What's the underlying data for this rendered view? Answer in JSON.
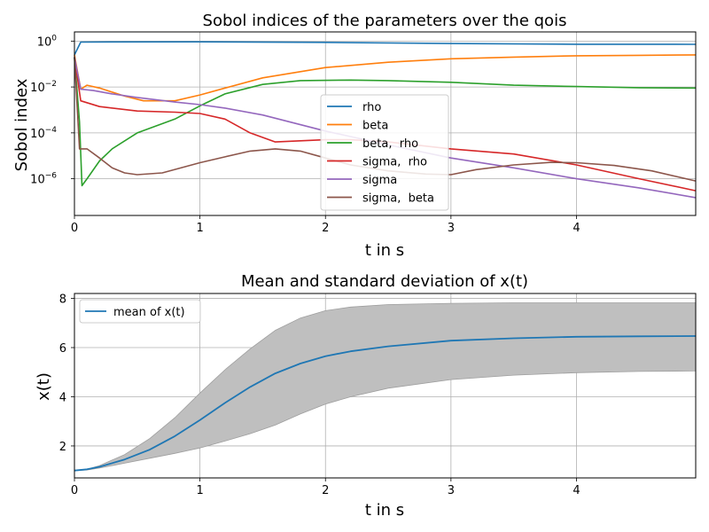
{
  "chart_data": [
    {
      "type": "line",
      "title": "Sobol indices of the parameters over the qois",
      "xlabel": "t in s",
      "ylabel": "Sobol index",
      "xlim": [
        0,
        4.95
      ],
      "ylim_log10": [
        -7.6,
        0.4
      ],
      "yscale": "log",
      "grid": true,
      "legend_position": "center-right",
      "xticks": [
        {
          "value": 0,
          "label": "0"
        },
        {
          "value": 1,
          "label": "1"
        },
        {
          "value": 2,
          "label": "2"
        },
        {
          "value": 3,
          "label": "3"
        },
        {
          "value": 4,
          "label": "4"
        }
      ],
      "yticks": [
        {
          "exp": 0,
          "base": "10",
          "sup": "0"
        },
        {
          "exp": -2,
          "base": "10",
          "sup": "−2"
        },
        {
          "exp": -4,
          "base": "10",
          "sup": "−4"
        },
        {
          "exp": -6,
          "base": "10",
          "sup": "−6"
        }
      ],
      "series": [
        {
          "name": "rho",
          "color": "#1f77b4",
          "points": [
            [
              0,
              0.25
            ],
            [
              0.05,
              0.9
            ],
            [
              0.3,
              0.92
            ],
            [
              1,
              0.93
            ],
            [
              2,
              0.88
            ],
            [
              3,
              0.78
            ],
            [
              4,
              0.73
            ],
            [
              4.95,
              0.72
            ]
          ]
        },
        {
          "name": "beta",
          "color": "#ff7f0e",
          "points": [
            [
              0,
              0.25
            ],
            [
              0.05,
              0.008
            ],
            [
              0.1,
              0.012
            ],
            [
              0.2,
              0.009
            ],
            [
              0.4,
              0.004
            ],
            [
              0.55,
              0.0025
            ],
            [
              0.8,
              0.0025
            ],
            [
              1,
              0.0045
            ],
            [
              1.2,
              0.009
            ],
            [
              1.5,
              0.025
            ],
            [
              2,
              0.07
            ],
            [
              2.5,
              0.12
            ],
            [
              3,
              0.17
            ],
            [
              3.5,
              0.2
            ],
            [
              4,
              0.23
            ],
            [
              4.5,
              0.24
            ],
            [
              4.95,
              0.25
            ]
          ]
        },
        {
          "name": "beta,  rho",
          "color": "#2ca02c",
          "points": [
            [
              0,
              0.2
            ],
            [
              0.04,
              0.0003
            ],
            [
              0.06,
              5e-07
            ],
            [
              0.1,
              1e-06
            ],
            [
              0.2,
              6e-06
            ],
            [
              0.3,
              2e-05
            ],
            [
              0.5,
              0.0001
            ],
            [
              0.8,
              0.0004
            ],
            [
              1,
              0.0015
            ],
            [
              1.2,
              0.005
            ],
            [
              1.5,
              0.013
            ],
            [
              1.8,
              0.019
            ],
            [
              2.2,
              0.02
            ],
            [
              2.5,
              0.019
            ],
            [
              3,
              0.016
            ],
            [
              3.5,
              0.012
            ],
            [
              4,
              0.0105
            ],
            [
              4.5,
              0.0093
            ],
            [
              4.95,
              0.009
            ]
          ]
        },
        {
          "name": "sigma,  rho",
          "color": "#d62728",
          "points": [
            [
              0,
              0.2
            ],
            [
              0.05,
              0.0025
            ],
            [
              0.2,
              0.0014
            ],
            [
              0.5,
              0.0009
            ],
            [
              0.8,
              0.0008
            ],
            [
              1,
              0.0007
            ],
            [
              1.2,
              0.0004
            ],
            [
              1.4,
              0.0001
            ],
            [
              1.6,
              4e-05
            ],
            [
              1.8,
              4.5e-05
            ],
            [
              2,
              5e-05
            ],
            [
              2.2,
              5e-05
            ],
            [
              2.5,
              4e-05
            ],
            [
              3,
              2e-05
            ],
            [
              3.5,
              1.2e-05
            ],
            [
              4,
              4e-06
            ],
            [
              4.5,
              1e-06
            ],
            [
              4.95,
              3e-07
            ]
          ]
        },
        {
          "name": "sigma",
          "color": "#9467bd",
          "points": [
            [
              0,
              0.2
            ],
            [
              0.05,
              0.008
            ],
            [
              0.15,
              0.007
            ],
            [
              0.3,
              0.005
            ],
            [
              0.5,
              0.0035
            ],
            [
              0.8,
              0.0022
            ],
            [
              1,
              0.0017
            ],
            [
              1.2,
              0.0012
            ],
            [
              1.5,
              0.0006
            ],
            [
              2,
              0.00012
            ],
            [
              2.5,
              3e-05
            ],
            [
              3,
              8e-06
            ],
            [
              3.5,
              3e-06
            ],
            [
              4,
              1e-06
            ],
            [
              4.5,
              4e-07
            ],
            [
              4.95,
              1.5e-07
            ]
          ]
        },
        {
          "name": "sigma,  beta",
          "color": "#8c564b",
          "points": [
            [
              0,
              0.2
            ],
            [
              0.04,
              2e-05
            ],
            [
              0.1,
              2e-05
            ],
            [
              0.2,
              8e-06
            ],
            [
              0.3,
              3e-06
            ],
            [
              0.4,
              1.8e-06
            ],
            [
              0.5,
              1.5e-06
            ],
            [
              0.7,
              1.8e-06
            ],
            [
              1,
              5e-06
            ],
            [
              1.2,
              9e-06
            ],
            [
              1.4,
              1.6e-05
            ],
            [
              1.6,
              2e-05
            ],
            [
              1.8,
              1.6e-05
            ],
            [
              2,
              8e-06
            ],
            [
              2.2,
              4e-06
            ],
            [
              2.5,
              2.2e-06
            ],
            [
              2.8,
              1.6e-06
            ],
            [
              3,
              1.5e-06
            ],
            [
              3.2,
              2.5e-06
            ],
            [
              3.5,
              4e-06
            ],
            [
              3.8,
              5.2e-06
            ],
            [
              4,
              5e-06
            ],
            [
              4.3,
              3.8e-06
            ],
            [
              4.6,
              2.2e-06
            ],
            [
              4.95,
              8e-07
            ]
          ]
        }
      ]
    },
    {
      "type": "area",
      "title": "Mean and standard deviation of x(t)",
      "xlabel": "t in s",
      "ylabel": "x(t)",
      "xlim": [
        0,
        4.95
      ],
      "ylim": [
        0.7,
        8.2
      ],
      "grid": true,
      "legend_position": "top-left",
      "xticks": [
        {
          "value": 0,
          "label": "0"
        },
        {
          "value": 1,
          "label": "1"
        },
        {
          "value": 2,
          "label": "2"
        },
        {
          "value": 3,
          "label": "3"
        },
        {
          "value": 4,
          "label": "4"
        }
      ],
      "yticks": [
        {
          "value": 2,
          "label": "2"
        },
        {
          "value": 4,
          "label": "4"
        },
        {
          "value": 6,
          "label": "6"
        },
        {
          "value": 8,
          "label": "8"
        }
      ],
      "series": [
        {
          "name": "mean of x(t)",
          "color": "#1f77b4",
          "points": [
            [
              0,
              1
            ],
            [
              0.1,
              1.05
            ],
            [
              0.2,
              1.15
            ],
            [
              0.4,
              1.45
            ],
            [
              0.6,
              1.85
            ],
            [
              0.8,
              2.4
            ],
            [
              1,
              3.05
            ],
            [
              1.2,
              3.75
            ],
            [
              1.4,
              4.4
            ],
            [
              1.6,
              4.95
            ],
            [
              1.8,
              5.35
            ],
            [
              2,
              5.65
            ],
            [
              2.2,
              5.85
            ],
            [
              2.5,
              6.05
            ],
            [
              3,
              6.28
            ],
            [
              3.5,
              6.38
            ],
            [
              4,
              6.44
            ],
            [
              4.5,
              6.46
            ],
            [
              4.95,
              6.47
            ]
          ]
        }
      ],
      "band": {
        "color": "#bfbfbf",
        "upper": [
          [
            0,
            1
          ],
          [
            0.1,
            1.05
          ],
          [
            0.2,
            1.2
          ],
          [
            0.4,
            1.65
          ],
          [
            0.6,
            2.3
          ],
          [
            0.8,
            3.15
          ],
          [
            1,
            4.15
          ],
          [
            1.2,
            5.1
          ],
          [
            1.4,
            5.95
          ],
          [
            1.6,
            6.7
          ],
          [
            1.8,
            7.2
          ],
          [
            2,
            7.5
          ],
          [
            2.2,
            7.65
          ],
          [
            2.5,
            7.75
          ],
          [
            3,
            7.8
          ],
          [
            3.5,
            7.82
          ],
          [
            4,
            7.82
          ],
          [
            4.95,
            7.82
          ]
        ],
        "lower": [
          [
            0,
            1
          ],
          [
            0.1,
            1.02
          ],
          [
            0.2,
            1.1
          ],
          [
            0.4,
            1.3
          ],
          [
            0.6,
            1.5
          ],
          [
            0.8,
            1.7
          ],
          [
            1,
            1.92
          ],
          [
            1.2,
            2.2
          ],
          [
            1.4,
            2.5
          ],
          [
            1.6,
            2.85
          ],
          [
            1.8,
            3.3
          ],
          [
            2,
            3.7
          ],
          [
            2.2,
            4.0
          ],
          [
            2.5,
            4.35
          ],
          [
            3,
            4.7
          ],
          [
            3.5,
            4.88
          ],
          [
            4,
            4.98
          ],
          [
            4.5,
            5.03
          ],
          [
            4.95,
            5.05
          ]
        ]
      }
    }
  ]
}
